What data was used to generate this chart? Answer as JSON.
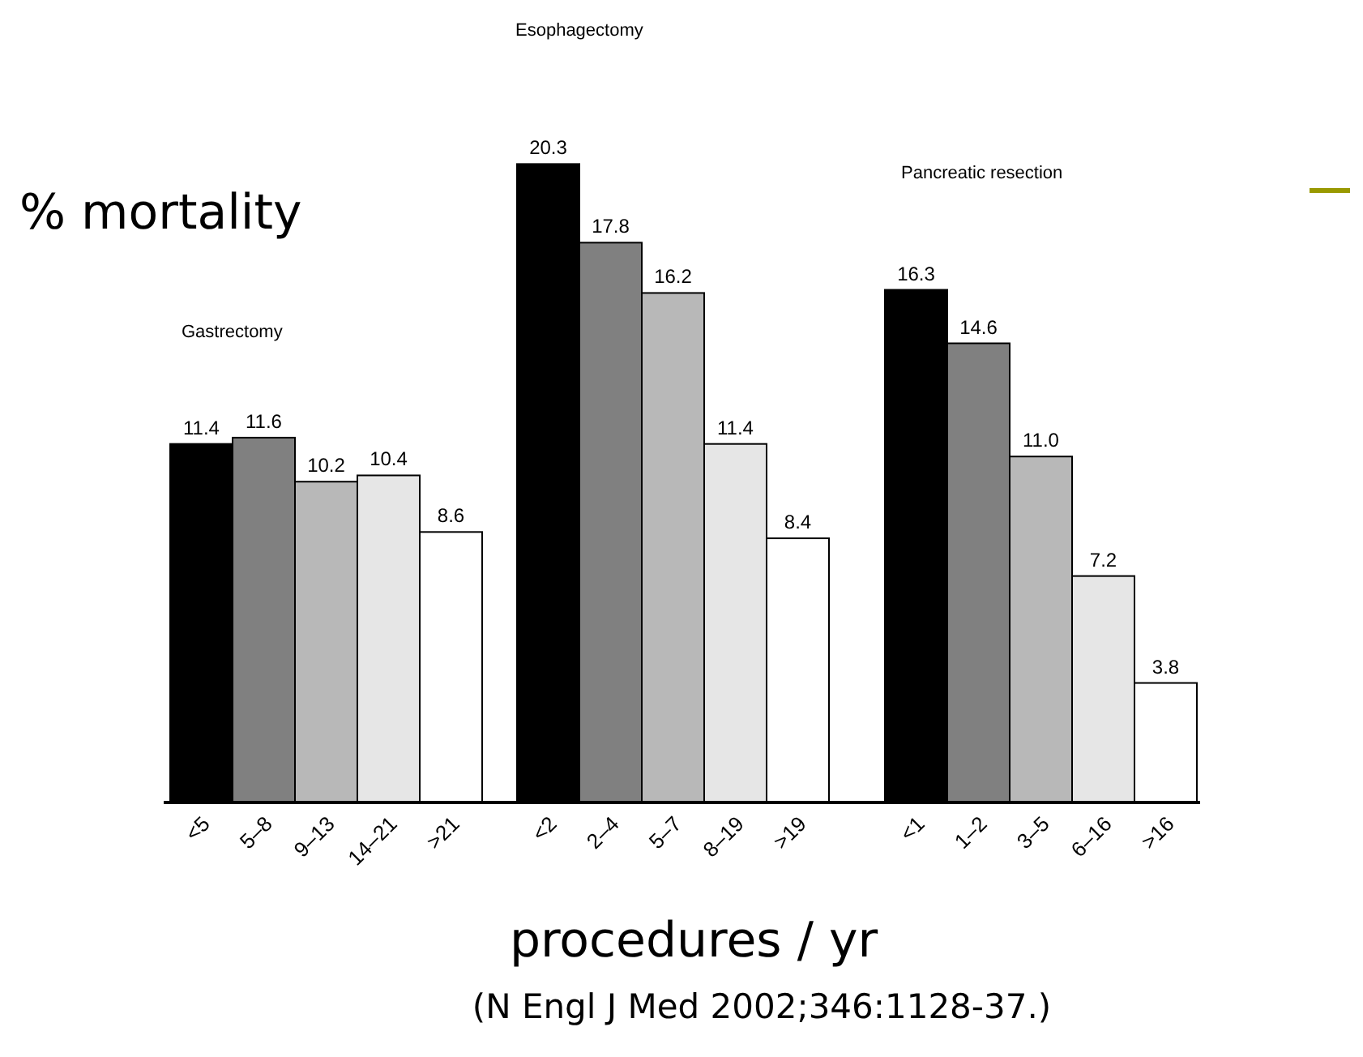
{
  "chart_data": [
    {
      "type": "bar",
      "title": "Gastrectomy",
      "ylabel": "% mortality",
      "categories": [
        "<5",
        "5–8",
        "9–13",
        "14–21",
        ">21"
      ],
      "values": [
        11.4,
        11.6,
        10.2,
        10.4,
        8.6
      ],
      "value_labels": [
        "11.4",
        "11.6",
        "10.2",
        "10.4",
        "8.6"
      ],
      "colors": [
        "#000000",
        "#808080",
        "#b8b8b8",
        "#e6e6e6",
        "#ffffff"
      ]
    },
    {
      "type": "bar",
      "title": "Esophagectomy",
      "xlabel": "procedures / yr",
      "annotations": [
        "(N Engl J Med 2002;346:1128-37.)"
      ],
      "categories": [
        "<2",
        "2–4",
        "5–7",
        "8–19",
        ">19"
      ],
      "values": [
        20.3,
        17.8,
        16.2,
        11.4,
        8.4
      ],
      "value_labels": [
        "20.3",
        "17.8",
        "16.2",
        "11.4",
        "8.4"
      ],
      "colors": [
        "#000000",
        "#808080",
        "#b8b8b8",
        "#e6e6e6",
        "#ffffff"
      ]
    },
    {
      "type": "bar",
      "title": "Pancreatic resection",
      "categories": [
        "<1",
        "1–2",
        "3–5",
        "6–16",
        ">16"
      ],
      "values": [
        16.3,
        14.6,
        11.0,
        7.2,
        3.8
      ],
      "value_labels": [
        "16.3",
        "14.6",
        "11.0",
        "7.2",
        "3.8"
      ],
      "colors": [
        "#000000",
        "#808080",
        "#b8b8b8",
        "#e6e6e6",
        "#ffffff"
      ]
    }
  ]
}
